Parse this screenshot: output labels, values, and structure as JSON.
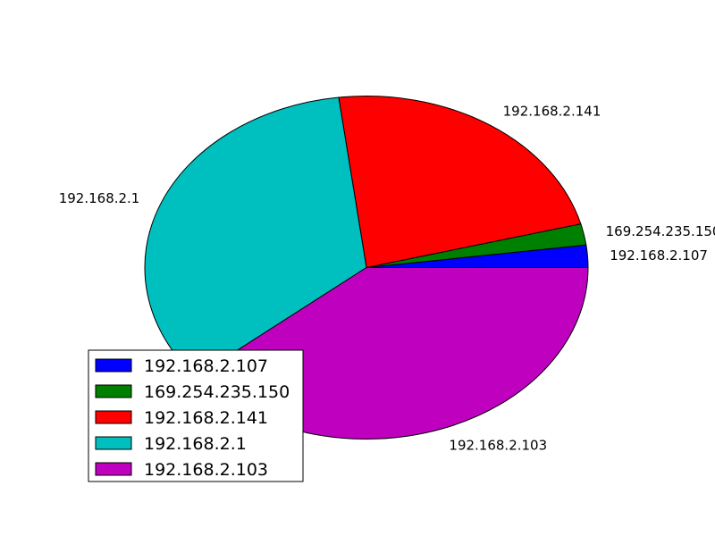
{
  "chart_data": {
    "type": "pie",
    "title": "",
    "legend_position": "lower-left",
    "slices": [
      {
        "label": "192.168.2.107",
        "value": 2.1,
        "color": "#0000ff"
      },
      {
        "label": "169.254.235.150",
        "value": 2.0,
        "color": "#008000"
      },
      {
        "label": "192.168.2.141",
        "value": 22.9,
        "color": "#ff0000"
      },
      {
        "label": "192.168.2.1",
        "value": 34.0,
        "color": "#00bfbf"
      },
      {
        "label": "192.168.2.103",
        "value": 39.0,
        "color": "#bf00bf"
      }
    ]
  }
}
